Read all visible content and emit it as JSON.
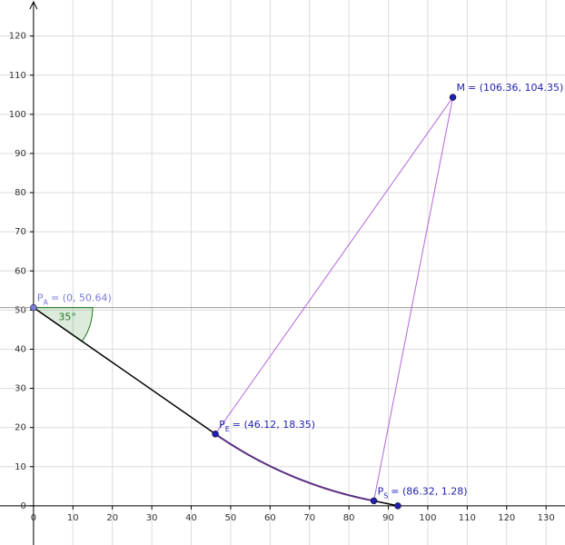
{
  "chart_data": {
    "type": "geometry",
    "xlim": [
      -8.5,
      134.8
    ],
    "ylim": [
      -10,
      129.2
    ],
    "xticks": [
      0,
      10,
      20,
      30,
      40,
      50,
      60,
      70,
      80,
      90,
      100,
      110,
      120,
      130
    ],
    "yticks": [
      0,
      10,
      20,
      30,
      40,
      50,
      60,
      70,
      80,
      90,
      100,
      110,
      120
    ],
    "grid": true,
    "points": [
      {
        "name": "P",
        "sub": "A",
        "coords": "= (0, 50.64)",
        "x": 0,
        "y": 50.64,
        "color": "#7a7ad8"
      },
      {
        "name": "P",
        "sub": "E",
        "coords": "= (46.12, 18.35)",
        "x": 46.12,
        "y": 18.35,
        "color": "#1f1fb0"
      },
      {
        "name": "P",
        "sub": "S",
        "coords": "= (86.32, 1.28)",
        "x": 86.32,
        "y": 1.28,
        "color": "#1f1fb0"
      },
      {
        "name": "M",
        "sub": null,
        "coords": "= (106.36, 104.35)",
        "x": 106.36,
        "y": 104.35,
        "color": "#1f1fb0"
      },
      {
        "name": null,
        "sub": null,
        "coords": null,
        "x": 92.4,
        "y": 0,
        "color": "#1f1fb0"
      }
    ],
    "segments": [
      {
        "from": 0,
        "to": 1,
        "color": "#000000"
      },
      {
        "from": 2,
        "to": 4,
        "color": "#000000"
      },
      {
        "from": 3,
        "to": 1,
        "color": "#b266d9"
      },
      {
        "from": 3,
        "to": 2,
        "color": "#b266d9"
      }
    ],
    "arc": {
      "center": 3,
      "from": 1,
      "to": 2,
      "color": "#5a2d82"
    },
    "hline": {
      "y": 50.64,
      "color": "#9a9a9a"
    },
    "angle": {
      "vertex": 0,
      "value": 35,
      "label": "35°",
      "radius": 15,
      "color": "#1c7a1c"
    }
  }
}
